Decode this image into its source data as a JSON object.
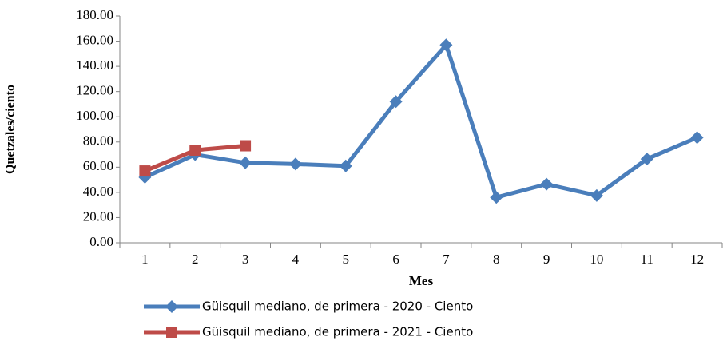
{
  "chart_data": {
    "type": "line",
    "x_label": "Mes",
    "y_label": "Quetzales/ciento",
    "categories": [
      "1",
      "2",
      "3",
      "4",
      "5",
      "6",
      "7",
      "8",
      "9",
      "10",
      "11",
      "12"
    ],
    "series": [
      {
        "name": "Güisquil mediano, de primera - 2020 - Ciento",
        "color": "#4a7ebb",
        "marker": "diamond",
        "values": [
          52,
          70,
          63.5,
          62.5,
          61,
          112,
          157,
          36,
          46.5,
          37.5,
          66.5,
          83.5
        ]
      },
      {
        "name": "Güisquil mediano, de primera - 2021 - Ciento",
        "color": "#be4b48",
        "marker": "square",
        "values": [
          57,
          73.5,
          77,
          null,
          null,
          null,
          null,
          null,
          null,
          null,
          null,
          null
        ]
      }
    ],
    "ylim": [
      0,
      180
    ],
    "yticks": [
      {
        "value": 0,
        "label": "0.00"
      },
      {
        "value": 20,
        "label": "20.00"
      },
      {
        "value": 40,
        "label": "40.00"
      },
      {
        "value": 60,
        "label": "60.00"
      },
      {
        "value": 80,
        "label": "80.00"
      },
      {
        "value": 100,
        "label": "100.00"
      },
      {
        "value": 120,
        "label": "120.00"
      },
      {
        "value": 140,
        "label": "140.00"
      },
      {
        "value": 160,
        "label": "160.00"
      },
      {
        "value": 180,
        "label": "180.00"
      }
    ],
    "grid": false,
    "legend": "bottom"
  }
}
